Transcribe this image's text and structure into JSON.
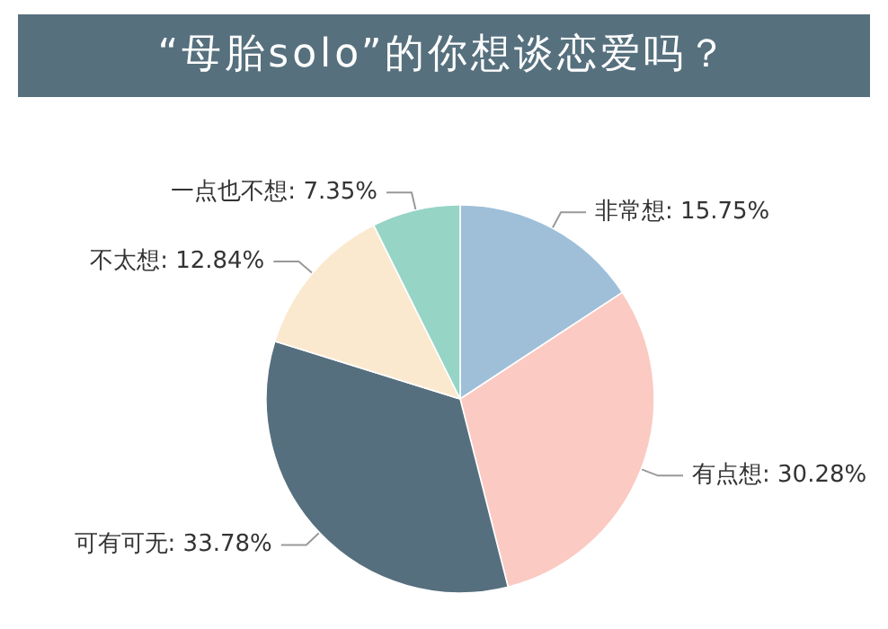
{
  "chart_data": {
    "type": "pie",
    "title": "“母胎solo”的你想谈恋爱吗？",
    "categories": [
      "非常想",
      "有点想",
      "可有可无",
      "不太想",
      "一点也不想"
    ],
    "values": [
      15.75,
      30.28,
      33.78,
      12.84,
      7.35
    ],
    "value_labels": [
      "15.75%",
      "30.28%",
      "33.78%",
      "12.84%",
      "7.35%"
    ],
    "colors": [
      "#9fbfd8",
      "#fbcac2",
      "#566f7e",
      "#fbe9cf",
      "#96d4c6"
    ],
    "legend": false
  }
}
